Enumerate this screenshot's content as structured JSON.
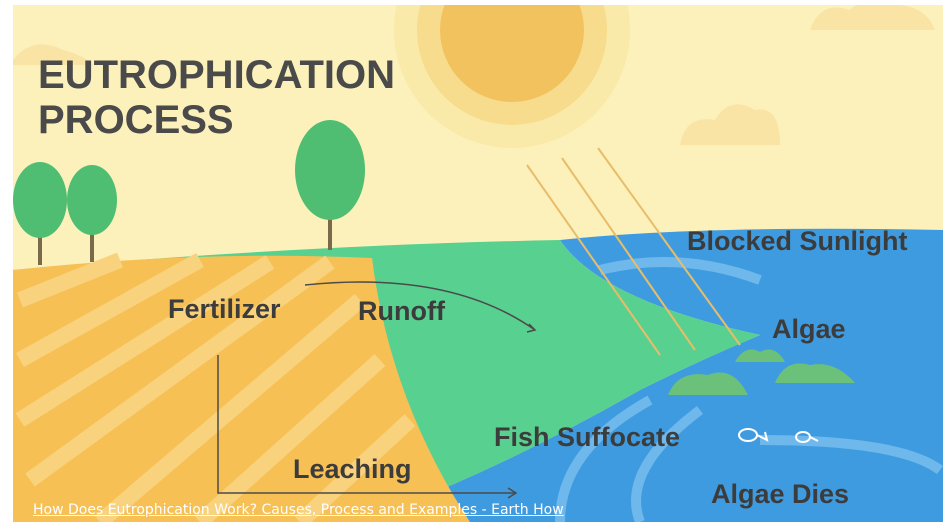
{
  "title": [
    "EUTROPHICATION",
    "PROCESS"
  ],
  "labels": [
    "Blocked Sunlight",
    "Fertilizer",
    "Runoff",
    "Algae",
    "Fish Suffocate",
    "Leaching",
    "Algae Dies"
  ],
  "caption": "How Does Eutrophication Work? Causes, Process and Examples - Earth How"
}
